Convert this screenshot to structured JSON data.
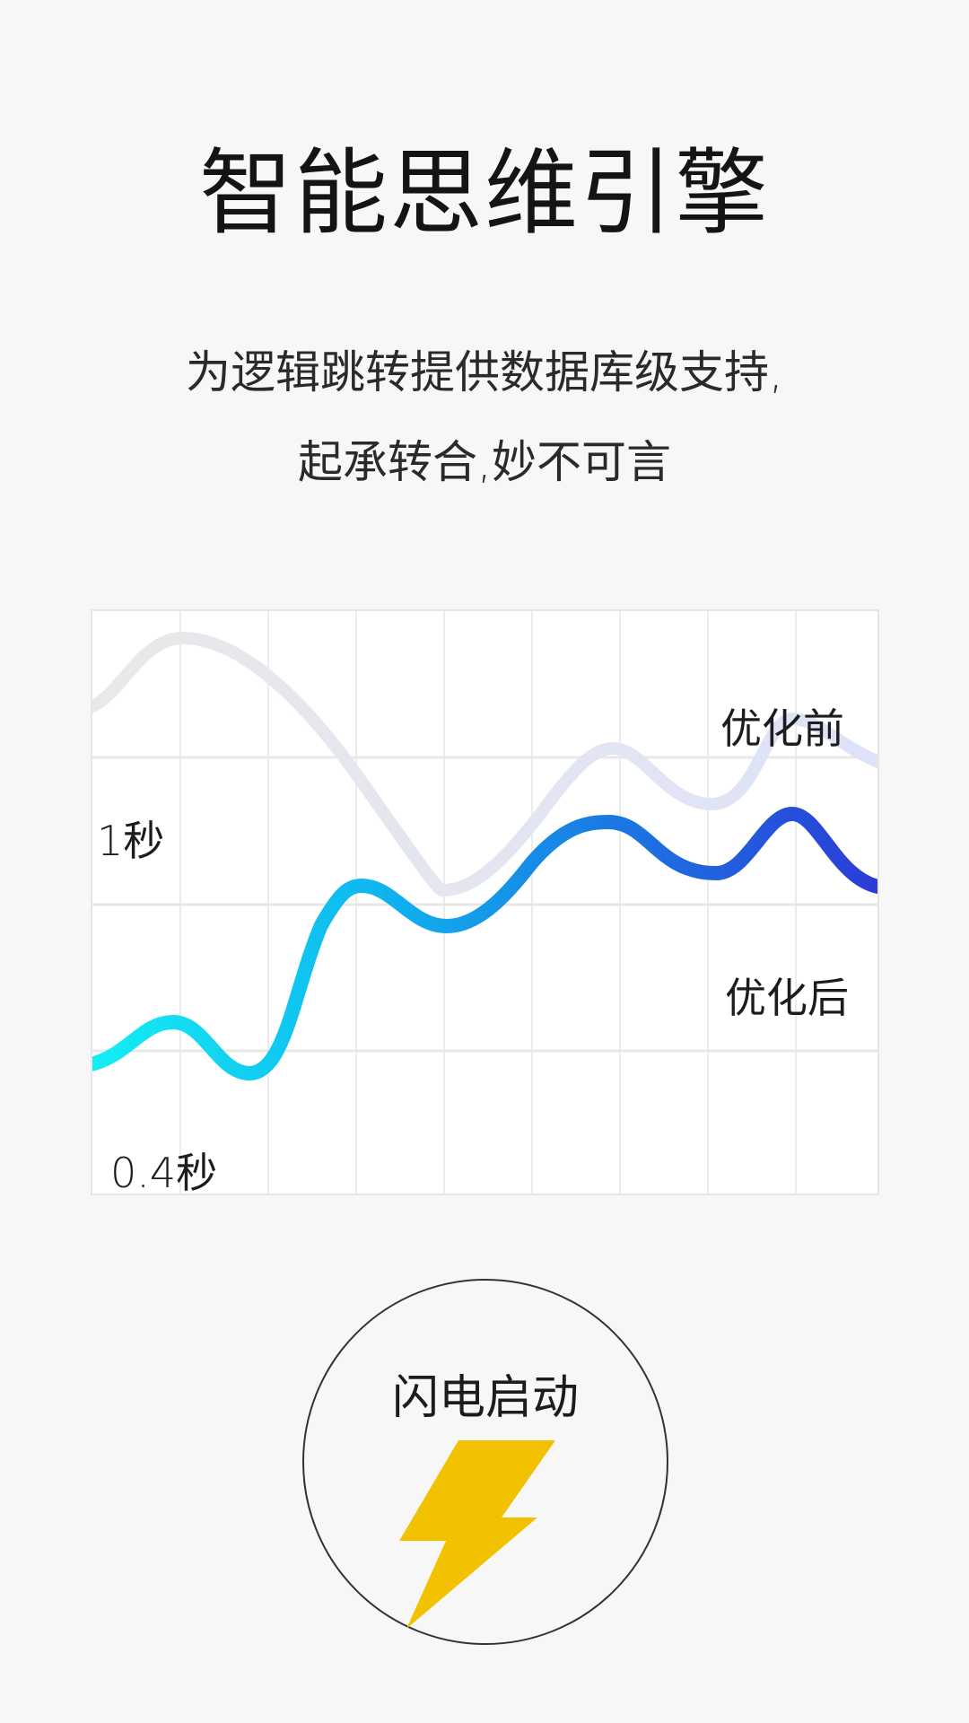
{
  "page": {
    "title": "智能思维引擎",
    "subtitle_line1": "为逻辑跳转提供数据库级支持,",
    "subtitle_line2": "起承转合,妙不可言"
  },
  "chart_data": {
    "type": "line",
    "title": "",
    "y_labels": [
      "1秒",
      "0.4秒"
    ],
    "series": [
      {
        "name": "优化前",
        "color_start": "#ececec",
        "color_end": "#dfe3f7"
      },
      {
        "name": "优化后",
        "color_start": "#14eaf2",
        "color_end": "#2b3fd8"
      }
    ],
    "grid": true
  },
  "launch": {
    "label": "闪电启动",
    "icon": "lightning-bolt-icon",
    "icon_color": "#f2c200"
  }
}
